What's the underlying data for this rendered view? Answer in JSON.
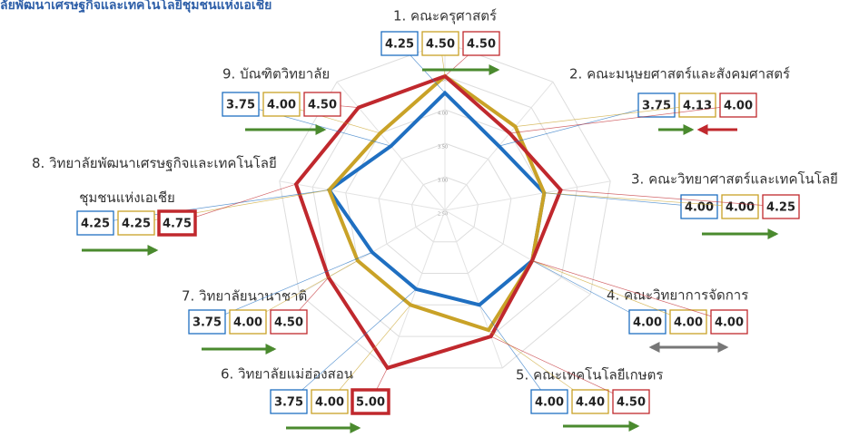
{
  "chart_data": {
    "type": "radar",
    "title": "ลัยพัฒนาเศรษฐกิจและเทคโนโลยีชุมชนแห่งเอเชีย",
    "categories": [
      "1. คณะครุศาสตร์",
      "2. คณะมนุษยศาสตร์และสังคมศาสตร์",
      "3. คณะวิทยาศาสตร์และเทคโนโลยี",
      "4. คณะวิทยาการจัดการ",
      "5. คณะเทคโนโลยีเกษตร",
      "6. วิทยาลัยแม่ฮ่องสอน",
      "7. วิทยาลัยนานาชาติ",
      "8. วิทยาลัยพัฒนาเศรษฐกิจและเทคโนโลยี\nชุมชนแห่งเอเชีย",
      "9. บัณฑิตวิทยาลัย"
    ],
    "rlim": [
      2.5,
      5
    ],
    "rticks": [
      {
        "value": 2.5,
        "label": "2.50"
      },
      {
        "value": 3,
        "label": "3.00"
      },
      {
        "value": 3.5,
        "label": "3.50"
      },
      {
        "value": 4,
        "label": "4.00"
      },
      {
        "value": 4.5,
        "label": "4.50"
      },
      {
        "value": 5,
        "label": "5.00"
      }
    ],
    "series": [
      {
        "color": "#1f6fc1",
        "values": [
          4.25,
          3.75,
          4,
          4,
          4,
          3.75,
          3.75,
          4.25,
          3.75
        ],
        "value_labels": [
          "4.25",
          "3.75",
          "4.00",
          "4.00",
          "4.00",
          "3.75",
          "3.75",
          "4.25",
          "3.75"
        ]
      },
      {
        "color": "#c9a227",
        "values": [
          4.5,
          4.13,
          4,
          4,
          4.4,
          4,
          4,
          4.25,
          4
        ],
        "value_labels": [
          "4.50",
          "4.13",
          "4.00",
          "4.00",
          "4.40",
          "4.00",
          "4.00",
          "4.25",
          "4.00"
        ]
      },
      {
        "color": "#c0282d",
        "values": [
          4.5,
          4,
          4.25,
          4,
          4.5,
          5,
          4.5,
          4.75,
          4.5
        ],
        "value_labels": [
          "4.50",
          "4.00",
          "4.25",
          "4.00",
          "4.50",
          "5.00",
          "4.50",
          "4.75",
          "4.50"
        ]
      }
    ]
  }
}
